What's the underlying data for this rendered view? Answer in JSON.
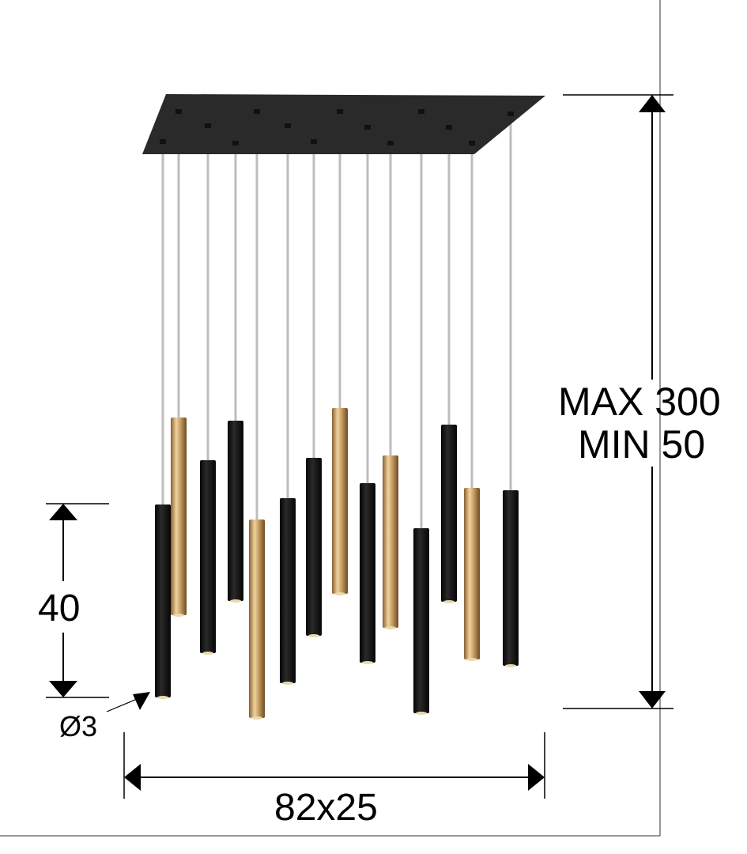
{
  "dimensions": {
    "height_max": "MAX 300",
    "height_min": "MIN 50",
    "pendant_length": "40",
    "pendant_diameter": "Ø3",
    "canopy_size": "82x25"
  },
  "colors": {
    "canopy": "#2a2a2a",
    "black_pendant": "#151515",
    "gold_pendant": "#c9a065",
    "cable": "#bdbdbd"
  }
}
